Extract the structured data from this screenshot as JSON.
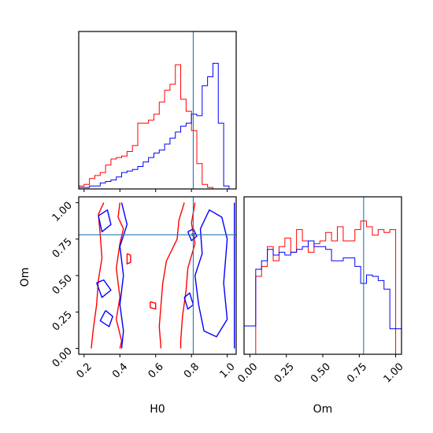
{
  "chart_data": {
    "type": "corner",
    "parameters": [
      "H0",
      "Om"
    ],
    "truths": {
      "H0": 0.81,
      "Om": 0.78
    },
    "colors": {
      "series_a": "#ff0000",
      "series_b": "#0000ff",
      "truth": "#1f77b4"
    },
    "axes": {
      "H0": {
        "label": "H0",
        "range": [
          0.17,
          1.05
        ],
        "ticks": [
          "0.2",
          "0.4",
          "0.6",
          "0.8",
          "1.0"
        ]
      },
      "Om": {
        "label": "Om",
        "range": [
          -0.04,
          1.04
        ],
        "ticks": [
          "0.00",
          "0.25",
          "0.50",
          "0.75",
          "1.00"
        ]
      }
    },
    "H0_hist": {
      "bin_edges": [
        0.17,
        0.2,
        0.23,
        0.26,
        0.29,
        0.32,
        0.35,
        0.38,
        0.41,
        0.44,
        0.47,
        0.5,
        0.53,
        0.56,
        0.59,
        0.62,
        0.65,
        0.68,
        0.71,
        0.74,
        0.77,
        0.8,
        0.83,
        0.86,
        0.89,
        0.92,
        0.95,
        0.98,
        1.01
      ],
      "series": [
        {
          "color": "#ff0000",
          "counts": [
            0.02,
            0.03,
            0.07,
            0.09,
            0.11,
            0.16,
            0.2,
            0.21,
            0.22,
            0.25,
            0.29,
            0.44,
            0.44,
            0.46,
            0.5,
            0.58,
            0.66,
            0.7,
            0.83,
            0.6,
            0.52,
            0.39,
            0.17,
            0.03,
            0.01,
            0,
            0,
            0
          ]
        },
        {
          "color": "#0000ff",
          "counts": [
            0.01,
            0.01,
            0.02,
            0.02,
            0.04,
            0.05,
            0.06,
            0.08,
            0.11,
            0.12,
            0.13,
            0.15,
            0.18,
            0.21,
            0.24,
            0.26,
            0.3,
            0.34,
            0.38,
            0.42,
            0.44,
            0.5,
            0.49,
            0.69,
            0.75,
            0.84,
            0.44,
            0.02
          ]
        }
      ]
    },
    "Om_hist": {
      "bin_edges": [
        -0.04,
        0.0,
        0.04,
        0.08,
        0.12,
        0.16,
        0.2,
        0.24,
        0.28,
        0.32,
        0.36,
        0.4,
        0.44,
        0.48,
        0.52,
        0.56,
        0.6,
        0.64,
        0.68,
        0.72,
        0.76,
        0.8,
        0.84,
        0.88,
        0.92,
        0.96,
        1.0,
        1.04
      ],
      "series": [
        {
          "color": "#ff0000",
          "counts": [
            0,
            0,
            0.55,
            0.62,
            0.76,
            0.66,
            0.76,
            0.82,
            0.72,
            0.88,
            0.8,
            0.72,
            0.78,
            0.8,
            0.86,
            0.8,
            0.9,
            0.8,
            0.8,
            0.88,
            0.94,
            0.9,
            0.84,
            0.88,
            0.86,
            0.88,
            0
          ]
        },
        {
          "color": "#0000ff",
          "counts": [
            0.2,
            0.2,
            0.6,
            0.66,
            0.74,
            0.7,
            0.72,
            0.7,
            0.72,
            0.74,
            0.76,
            0.8,
            0.76,
            0.76,
            0.74,
            0.66,
            0.66,
            0.68,
            0.68,
            0.62,
            0.5,
            0.56,
            0.55,
            0.52,
            0.46,
            0.18,
            0.18
          ]
        }
      ]
    },
    "contours": [
      {
        "color": "#ff0000",
        "points": [
          [
            0.31,
            1.0
          ],
          [
            0.28,
            0.92
          ],
          [
            0.29,
            0.78
          ],
          [
            0.3,
            0.62
          ],
          [
            0.28,
            0.47
          ],
          [
            0.27,
            0.3
          ],
          [
            0.25,
            0.12
          ],
          [
            0.24,
            0.0
          ]
        ]
      },
      {
        "color": "#ff0000",
        "points": [
          [
            0.4,
            1.0
          ],
          [
            0.39,
            0.9
          ],
          [
            0.42,
            0.82
          ],
          [
            0.4,
            0.72
          ],
          [
            0.38,
            0.55
          ],
          [
            0.4,
            0.35
          ],
          [
            0.38,
            0.2
          ],
          [
            0.41,
            0.05
          ],
          [
            0.4,
            0.0
          ]
        ]
      },
      {
        "color": "#ff0000",
        "points": [
          [
            0.76,
            1.0
          ],
          [
            0.73,
            0.88
          ],
          [
            0.72,
            0.75
          ],
          [
            0.66,
            0.6
          ],
          [
            0.64,
            0.45
          ],
          [
            0.63,
            0.3
          ],
          [
            0.62,
            0.15
          ],
          [
            0.63,
            0.0
          ]
        ]
      },
      {
        "color": "#ff0000",
        "points": [
          [
            0.82,
            1.0
          ],
          [
            0.8,
            0.86
          ],
          [
            0.82,
            0.72
          ],
          [
            0.78,
            0.55
          ],
          [
            0.77,
            0.4
          ],
          [
            0.75,
            0.22
          ],
          [
            0.74,
            0.05
          ],
          [
            0.74,
            0.0
          ]
        ]
      },
      {
        "color": "#ff0000",
        "points": [
          [
            0.44,
            0.65
          ],
          [
            0.46,
            0.64
          ],
          [
            0.46,
            0.59
          ],
          [
            0.44,
            0.58
          ],
          [
            0.44,
            0.65
          ]
        ]
      },
      {
        "color": "#ff0000",
        "points": [
          [
            0.57,
            0.32
          ],
          [
            0.6,
            0.31
          ],
          [
            0.6,
            0.27
          ],
          [
            0.57,
            0.28
          ],
          [
            0.57,
            0.32
          ]
        ]
      },
      {
        "color": "#0000ff",
        "points": [
          [
            0.28,
            0.91
          ],
          [
            0.33,
            0.95
          ],
          [
            0.35,
            0.85
          ],
          [
            0.3,
            0.8
          ],
          [
            0.28,
            0.91
          ]
        ]
      },
      {
        "color": "#0000ff",
        "points": [
          [
            0.27,
            0.45
          ],
          [
            0.31,
            0.47
          ],
          [
            0.35,
            0.4
          ],
          [
            0.3,
            0.35
          ],
          [
            0.27,
            0.45
          ]
        ]
      },
      {
        "color": "#0000ff",
        "points": [
          [
            0.32,
            0.26
          ],
          [
            0.36,
            0.22
          ],
          [
            0.34,
            0.15
          ],
          [
            0.29,
            0.19
          ],
          [
            0.32,
            0.26
          ]
        ]
      },
      {
        "color": "#0000ff",
        "points": [
          [
            0.41,
            1.0
          ],
          [
            0.44,
            0.85
          ],
          [
            0.4,
            0.7
          ],
          [
            0.42,
            0.5
          ],
          [
            0.4,
            0.3
          ],
          [
            0.42,
            0.12
          ],
          [
            0.41,
            0.0
          ]
        ]
      },
      {
        "color": "#0000ff",
        "points": [
          [
            0.85,
            0.82
          ],
          [
            0.9,
            0.95
          ],
          [
            0.97,
            0.9
          ],
          [
            1.0,
            0.75
          ],
          [
            0.98,
            0.45
          ],
          [
            1.0,
            0.2
          ],
          [
            0.94,
            0.08
          ],
          [
            0.87,
            0.12
          ],
          [
            0.84,
            0.3
          ],
          [
            0.82,
            0.5
          ],
          [
            0.86,
            0.65
          ],
          [
            0.85,
            0.82
          ]
        ]
      },
      {
        "color": "#0000ff",
        "points": [
          [
            0.78,
            0.8
          ],
          [
            0.81,
            0.82
          ],
          [
            0.83,
            0.77
          ],
          [
            0.8,
            0.74
          ],
          [
            0.78,
            0.8
          ]
        ]
      },
      {
        "color": "#0000ff",
        "points": [
          [
            0.76,
            0.35
          ],
          [
            0.79,
            0.38
          ],
          [
            0.81,
            0.3
          ],
          [
            0.78,
            0.27
          ],
          [
            0.76,
            0.35
          ]
        ]
      },
      {
        "color": "#0000ff",
        "points": [
          [
            1.04,
            1.0
          ],
          [
            1.04,
            0.0
          ]
        ]
      }
    ]
  }
}
